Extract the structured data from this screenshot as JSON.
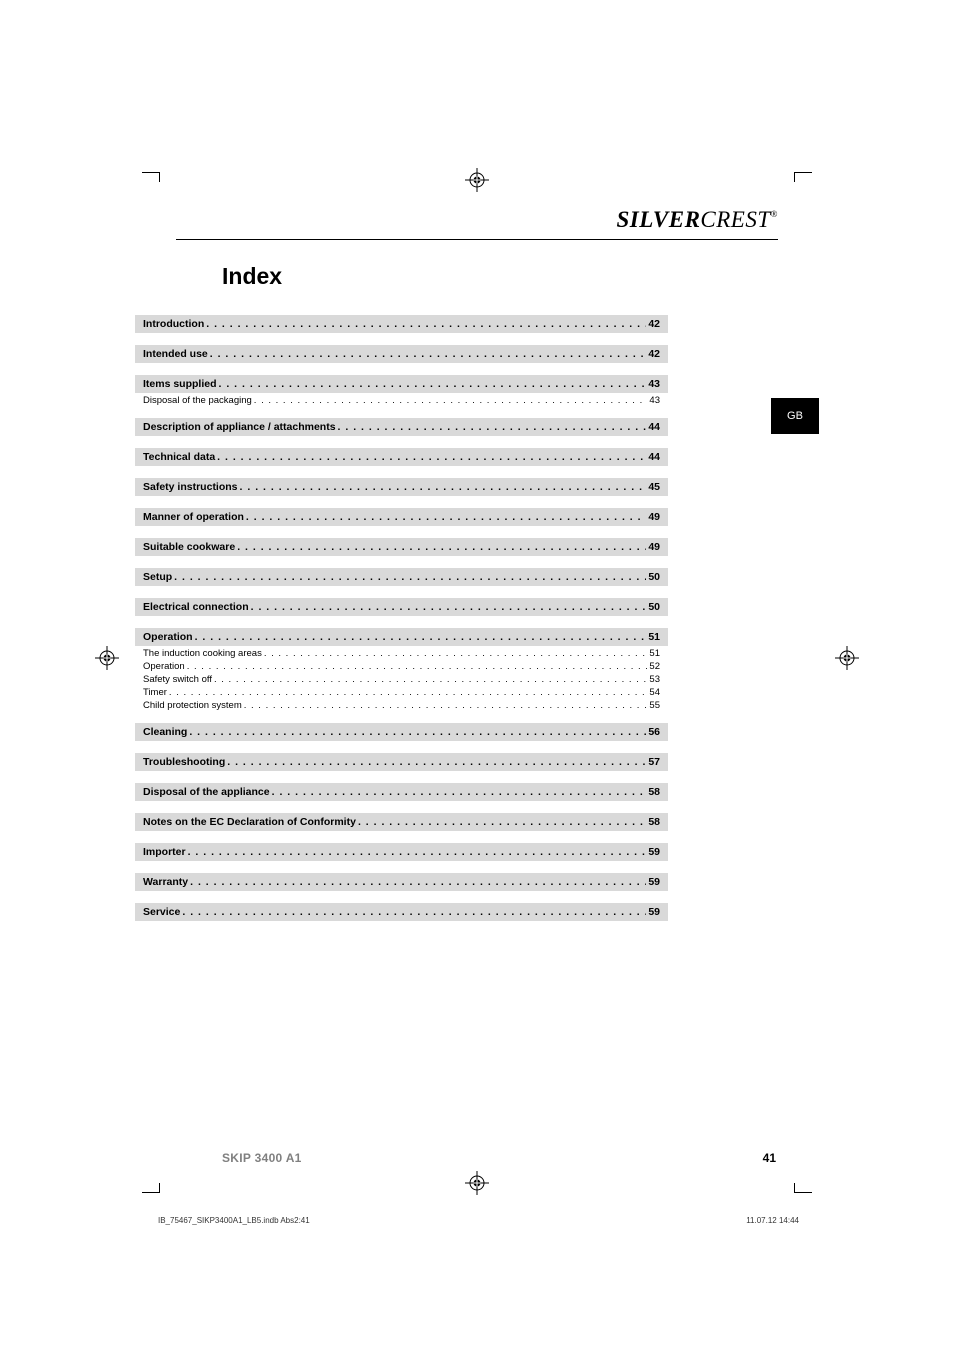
{
  "brand": {
    "first": "SILVER",
    "second": "CREST",
    "reg": "®"
  },
  "title": "Index",
  "side_tab": "GB",
  "footer": {
    "model": "SKIP 3400 A1",
    "page": "41"
  },
  "tiny_left": "IB_75467_SIKP3400A1_LB5.indb   Abs2:41",
  "tiny_right": "11.07.12   14:44",
  "toc": [
    {
      "type": "main",
      "label": "Introduction",
      "page": "42"
    },
    {
      "type": "main",
      "label": "Intended use",
      "page": "42"
    },
    {
      "type": "main",
      "label": "Items supplied",
      "page": "43"
    },
    {
      "type": "sub",
      "label": "Disposal of the packaging",
      "page": "43"
    },
    {
      "type": "main",
      "label": "Description of appliance / attachments",
      "page": "44"
    },
    {
      "type": "main",
      "label": "Technical data",
      "page": "44"
    },
    {
      "type": "main",
      "label": "Safety instructions",
      "page": "45"
    },
    {
      "type": "main",
      "label": "Manner of operation",
      "page": "49"
    },
    {
      "type": "main",
      "label": "Suitable cookware",
      "page": "49"
    },
    {
      "type": "main",
      "label": "Setup",
      "page": "50"
    },
    {
      "type": "main",
      "label": "Electrical connection",
      "page": "50"
    },
    {
      "type": "main",
      "label": "Operation",
      "page": "51"
    },
    {
      "type": "sub",
      "label": "The induction cooking areas",
      "page": "51"
    },
    {
      "type": "sub",
      "label": "Operation",
      "page": "52"
    },
    {
      "type": "sub",
      "label": "Safety switch off",
      "page": "53"
    },
    {
      "type": "sub",
      "label": "Timer",
      "page": "54"
    },
    {
      "type": "sub",
      "label": "Child protection system",
      "page": "55"
    },
    {
      "type": "main",
      "label": "Cleaning",
      "page": "56"
    },
    {
      "type": "main",
      "label": "Troubleshooting",
      "page": "57"
    },
    {
      "type": "main",
      "label": "Disposal of the appliance",
      "page": "58"
    },
    {
      "type": "main",
      "label": "Notes on the EC Declaration of Conformity",
      "page": "58"
    },
    {
      "type": "main",
      "label": "Importer",
      "page": "59"
    },
    {
      "type": "main",
      "label": "Warranty",
      "page": "59"
    },
    {
      "type": "main",
      "label": "Service",
      "page": "59"
    }
  ],
  "style": {
    "page_bg": "#ffffff",
    "text_color": "#000000",
    "row_bg": "#d9d9d9",
    "footer_gray": "#808080",
    "title_fontsize": 23,
    "main_fontsize": 10.5,
    "sub_fontsize": 9.5
  }
}
